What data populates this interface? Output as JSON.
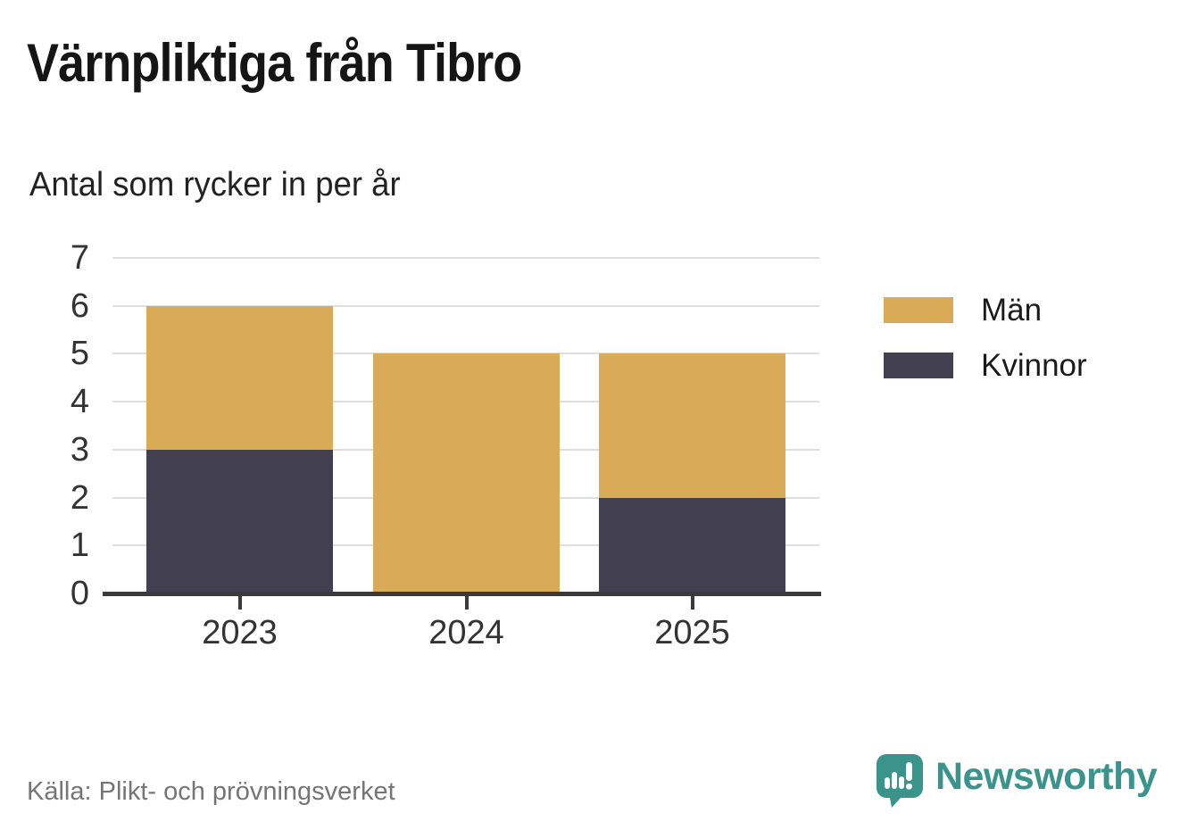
{
  "title": "Värnpliktiga från Tibro",
  "subtitle": "Antal som rycker in per år",
  "source": "Källa: Plikt- och prövningsverket",
  "brand": {
    "name": "Newsworthy",
    "color": "#3a948c",
    "icon": "speech-bubble-bar-chart-icon"
  },
  "colors": {
    "men": "#d9ab57",
    "women": "#423f4f",
    "gridline": "#dedede",
    "axis": "#3a3a3a",
    "source_text": "#757575"
  },
  "chart_data": {
    "type": "bar",
    "stacked": true,
    "title": "Värnpliktiga från Tibro",
    "subtitle": "Antal som rycker in per år",
    "categories": [
      "2023",
      "2024",
      "2025"
    ],
    "series": [
      {
        "name": "Män",
        "color": "#d9ab57",
        "values": [
          3,
          5,
          3
        ]
      },
      {
        "name": "Kvinnor",
        "color": "#423f4f",
        "values": [
          3,
          0,
          2
        ]
      }
    ],
    "stack_bottom_to_top": [
      "Kvinnor",
      "Män"
    ],
    "totals": [
      6,
      5,
      5
    ],
    "ylim": [
      0,
      7
    ],
    "y_ticks": [
      0,
      1,
      2,
      3,
      4,
      5,
      6,
      7
    ],
    "xlabel": "",
    "ylabel": "",
    "grid": "horizontal",
    "legend_position": "right"
  }
}
